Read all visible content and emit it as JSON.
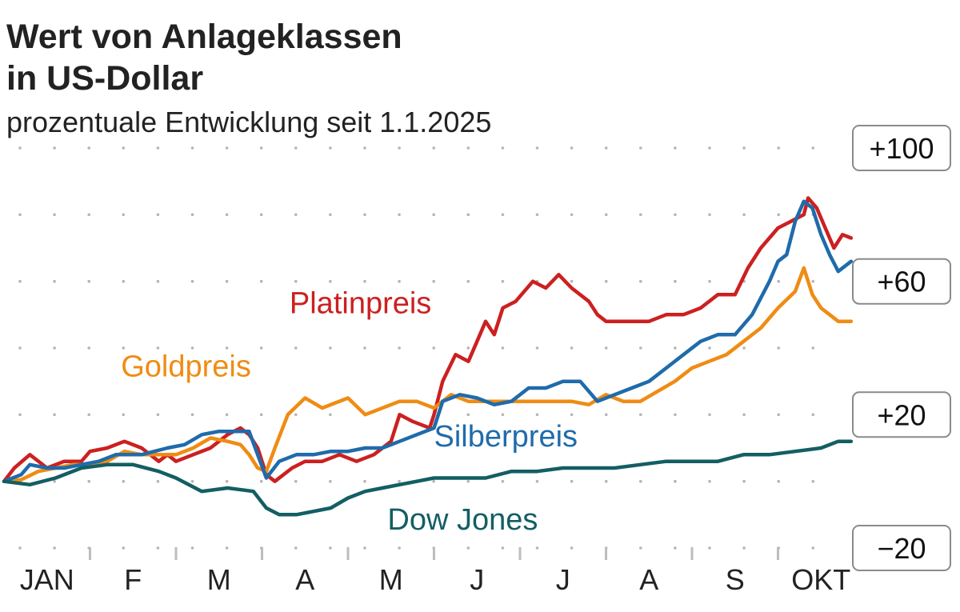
{
  "header": {
    "title_line1": "Wert von Anlageklassen",
    "title_line2": "in US-Dollar",
    "subtitle": "prozentuale Entwicklung seit 1.1.2025"
  },
  "chart_data": {
    "type": "line",
    "title": "Wert von Anlageklassen in US-Dollar",
    "subtitle": "prozentuale Entwicklung seit 1.1.2025",
    "ylim": [
      -20,
      100
    ],
    "yticks": [
      -20,
      20,
      60,
      100
    ],
    "ytick_labels": [
      "−20",
      "+20",
      "+60",
      "+100"
    ],
    "x_months": [
      "JAN",
      "F",
      "M",
      "A",
      "M",
      "J",
      "J",
      "A",
      "S",
      "OKT"
    ],
    "x_range_months": [
      0,
      9.85
    ],
    "grid": "dotted",
    "series": [
      {
        "name": "Platinpreis",
        "color": "#cc2020",
        "label": "Platinpreis",
        "points": [
          [
            0,
            0
          ],
          [
            0.12,
            4
          ],
          [
            0.3,
            8
          ],
          [
            0.5,
            4
          ],
          [
            0.7,
            6
          ],
          [
            0.9,
            6
          ],
          [
            1.0,
            9
          ],
          [
            1.2,
            10
          ],
          [
            1.4,
            12
          ],
          [
            1.6,
            10
          ],
          [
            1.8,
            6
          ],
          [
            1.9,
            8
          ],
          [
            2.0,
            6
          ],
          [
            2.2,
            8
          ],
          [
            2.4,
            10
          ],
          [
            2.6,
            14
          ],
          [
            2.75,
            16
          ],
          [
            2.85,
            14
          ],
          [
            2.95,
            10
          ],
          [
            3.05,
            2
          ],
          [
            3.15,
            0
          ],
          [
            3.25,
            2
          ],
          [
            3.35,
            4
          ],
          [
            3.5,
            6
          ],
          [
            3.7,
            6
          ],
          [
            3.9,
            8
          ],
          [
            4.1,
            6
          ],
          [
            4.3,
            8
          ],
          [
            4.5,
            12
          ],
          [
            4.6,
            20
          ],
          [
            4.75,
            18
          ],
          [
            4.95,
            16
          ],
          [
            5.0,
            20
          ],
          [
            5.1,
            30
          ],
          [
            5.25,
            38
          ],
          [
            5.4,
            36
          ],
          [
            5.5,
            42
          ],
          [
            5.6,
            48
          ],
          [
            5.7,
            44
          ],
          [
            5.8,
            52
          ],
          [
            5.95,
            54
          ],
          [
            6.15,
            60
          ],
          [
            6.3,
            58
          ],
          [
            6.45,
            62
          ],
          [
            6.6,
            58
          ],
          [
            6.8,
            54
          ],
          [
            6.9,
            50
          ],
          [
            7.0,
            48
          ],
          [
            7.1,
            48
          ],
          [
            7.3,
            48
          ],
          [
            7.5,
            48
          ],
          [
            7.7,
            50
          ],
          [
            7.9,
            50
          ],
          [
            8.1,
            52
          ],
          [
            8.3,
            56
          ],
          [
            8.5,
            56
          ],
          [
            8.65,
            64
          ],
          [
            8.8,
            70
          ],
          [
            9.0,
            76
          ],
          [
            9.15,
            78
          ],
          [
            9.3,
            80
          ],
          [
            9.35,
            85
          ],
          [
            9.45,
            82
          ],
          [
            9.55,
            76
          ],
          [
            9.65,
            70
          ],
          [
            9.75,
            74
          ],
          [
            9.85,
            73
          ]
        ]
      },
      {
        "name": "Goldpreis",
        "color": "#ef8c13",
        "label": "Goldpreis",
        "points": [
          [
            0,
            0
          ],
          [
            0.2,
            0.5
          ],
          [
            0.4,
            3
          ],
          [
            0.6,
            4
          ],
          [
            0.8,
            5
          ],
          [
            1.0,
            5
          ],
          [
            1.2,
            6
          ],
          [
            1.4,
            9
          ],
          [
            1.6,
            8
          ],
          [
            1.8,
            8
          ],
          [
            2.0,
            8
          ],
          [
            2.2,
            10
          ],
          [
            2.4,
            13
          ],
          [
            2.6,
            12
          ],
          [
            2.75,
            11
          ],
          [
            2.85,
            8
          ],
          [
            2.95,
            4
          ],
          [
            3.05,
            3
          ],
          [
            3.15,
            10
          ],
          [
            3.3,
            20
          ],
          [
            3.5,
            25
          ],
          [
            3.7,
            22
          ],
          [
            4.0,
            25
          ],
          [
            4.2,
            20
          ],
          [
            4.4,
            22
          ],
          [
            4.6,
            24
          ],
          [
            4.8,
            24
          ],
          [
            5.0,
            22
          ],
          [
            5.2,
            26
          ],
          [
            5.4,
            24
          ],
          [
            5.6,
            24
          ],
          [
            5.8,
            24
          ],
          [
            6.0,
            24
          ],
          [
            6.2,
            24
          ],
          [
            6.4,
            24
          ],
          [
            6.6,
            24
          ],
          [
            6.8,
            23
          ],
          [
            7.0,
            26
          ],
          [
            7.2,
            24
          ],
          [
            7.4,
            24
          ],
          [
            7.6,
            27
          ],
          [
            7.8,
            30
          ],
          [
            8.0,
            34
          ],
          [
            8.2,
            36
          ],
          [
            8.4,
            38
          ],
          [
            8.6,
            42
          ],
          [
            8.8,
            46
          ],
          [
            9.0,
            52
          ],
          [
            9.2,
            57
          ],
          [
            9.3,
            64
          ],
          [
            9.4,
            56
          ],
          [
            9.5,
            52
          ],
          [
            9.6,
            50
          ],
          [
            9.7,
            48
          ],
          [
            9.85,
            48
          ]
        ]
      },
      {
        "name": "Silberpreis",
        "color": "#1f6bab",
        "label": "Silberpreis",
        "points": [
          [
            0,
            0
          ],
          [
            0.2,
            2
          ],
          [
            0.3,
            5
          ],
          [
            0.5,
            4
          ],
          [
            0.7,
            4
          ],
          [
            0.9,
            5
          ],
          [
            1.1,
            6
          ],
          [
            1.3,
            8
          ],
          [
            1.6,
            8
          ],
          [
            1.9,
            10
          ],
          [
            2.1,
            11
          ],
          [
            2.3,
            14
          ],
          [
            2.5,
            15
          ],
          [
            2.7,
            15
          ],
          [
            2.85,
            15
          ],
          [
            2.95,
            8
          ],
          [
            3.05,
            1
          ],
          [
            3.2,
            6
          ],
          [
            3.4,
            8
          ],
          [
            3.6,
            8
          ],
          [
            3.8,
            9
          ],
          [
            4.0,
            9
          ],
          [
            4.2,
            10
          ],
          [
            4.4,
            10
          ],
          [
            4.6,
            12
          ],
          [
            4.8,
            14
          ],
          [
            5.0,
            16
          ],
          [
            5.1,
            24
          ],
          [
            5.3,
            26
          ],
          [
            5.5,
            25
          ],
          [
            5.7,
            23
          ],
          [
            5.9,
            24
          ],
          [
            6.1,
            28
          ],
          [
            6.3,
            28
          ],
          [
            6.5,
            30
          ],
          [
            6.7,
            30
          ],
          [
            6.9,
            24
          ],
          [
            7.1,
            26
          ],
          [
            7.3,
            28
          ],
          [
            7.5,
            30
          ],
          [
            7.7,
            34
          ],
          [
            7.9,
            38
          ],
          [
            8.1,
            42
          ],
          [
            8.3,
            44
          ],
          [
            8.5,
            44
          ],
          [
            8.7,
            50
          ],
          [
            8.9,
            60
          ],
          [
            9.0,
            66
          ],
          [
            9.1,
            68
          ],
          [
            9.2,
            78
          ],
          [
            9.3,
            84
          ],
          [
            9.4,
            82
          ],
          [
            9.5,
            74
          ],
          [
            9.6,
            68
          ],
          [
            9.7,
            63
          ],
          [
            9.85,
            66
          ]
        ]
      },
      {
        "name": "Dow Jones",
        "color": "#135e63",
        "label": "Dow Jones",
        "points": [
          [
            0,
            0
          ],
          [
            0.3,
            -1
          ],
          [
            0.6,
            1
          ],
          [
            0.9,
            4
          ],
          [
            1.2,
            5
          ],
          [
            1.5,
            5
          ],
          [
            1.8,
            3
          ],
          [
            2.0,
            1
          ],
          [
            2.3,
            -3
          ],
          [
            2.6,
            -2
          ],
          [
            2.9,
            -3
          ],
          [
            3.05,
            -8
          ],
          [
            3.2,
            -10
          ],
          [
            3.4,
            -10
          ],
          [
            3.6,
            -9
          ],
          [
            3.8,
            -8
          ],
          [
            4.0,
            -5
          ],
          [
            4.2,
            -3
          ],
          [
            4.4,
            -2
          ],
          [
            4.6,
            -1
          ],
          [
            4.8,
            0
          ],
          [
            5.0,
            1
          ],
          [
            5.3,
            1
          ],
          [
            5.6,
            1
          ],
          [
            5.9,
            3
          ],
          [
            6.2,
            3
          ],
          [
            6.5,
            4
          ],
          [
            6.8,
            4
          ],
          [
            7.1,
            4
          ],
          [
            7.4,
            5
          ],
          [
            7.7,
            6
          ],
          [
            8.0,
            6
          ],
          [
            8.3,
            6
          ],
          [
            8.6,
            8
          ],
          [
            8.9,
            8
          ],
          [
            9.2,
            9
          ],
          [
            9.5,
            10
          ],
          [
            9.7,
            12
          ],
          [
            9.85,
            12
          ]
        ]
      }
    ]
  }
}
